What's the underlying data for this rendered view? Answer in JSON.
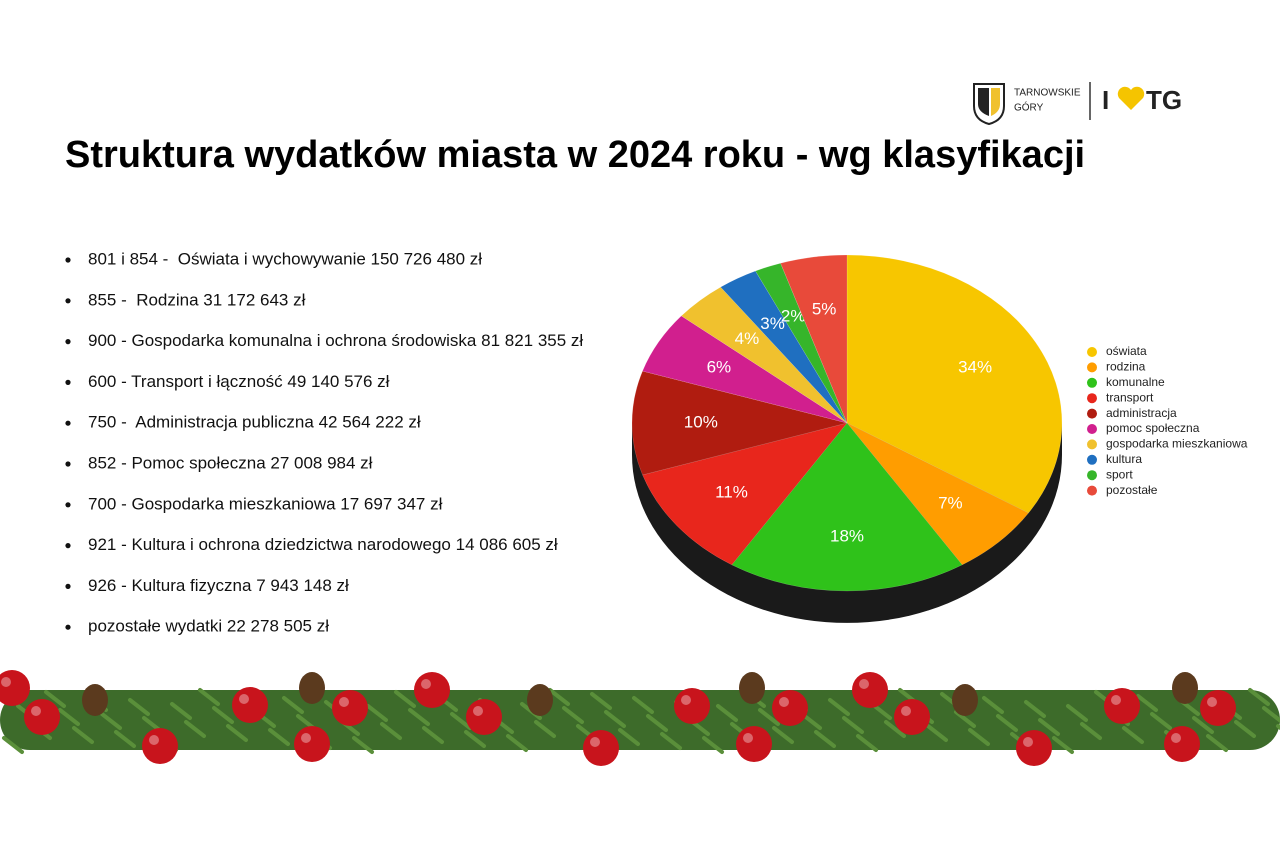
{
  "logo": {
    "city_line1": "TARNOWSKIE",
    "city_line2": "GÓRY",
    "brand_left": "I",
    "brand_right": "TG"
  },
  "title": "Struktura wydatków miasta w 2024 roku - wg klasyfikacji",
  "items": [
    "801 i 854 -  Oświata i wychowywanie 150 726 480 zł",
    "855 -  Rodzina 31 172 643 zł",
    "900 - Gospodarka komunalna i ochrona środowiska 81 821 355 zł",
    "600 - Transport i łączność 49 140 576 zł",
    "750 -  Administracja publiczna 42 564 222 zł",
    "852 - Pomoc społeczna 27 008 984 zł",
    "700 - Gospodarka mieszkaniowa 17 697 347 zł",
    "921 - Kultura i ochrona dziedzictwa narodowego 14 086 605 zł",
    "926 - Kultura fizyczna 7 943 148 zł",
    "pozostałe wydatki 22 278 505 zł"
  ],
  "chart_data": {
    "type": "pie",
    "categories": [
      "oświata",
      "rodzina",
      "komunalne",
      "transport",
      "administracja",
      "pomoc społeczna",
      "gospodarka mieszkaniowa",
      "kultura",
      "sport",
      "pozostałe"
    ],
    "values": [
      34,
      7,
      18,
      11,
      10,
      6,
      4,
      3,
      2,
      5
    ],
    "value_labels": [
      "34%",
      "7%",
      "18%",
      "11%",
      "10%",
      "6%",
      "4%",
      "3%",
      "2%",
      "5%"
    ],
    "colors": [
      "#f7c600",
      "#ff9d00",
      "#2fc21a",
      "#e8261c",
      "#b01c10",
      "#d11f8e",
      "#f0c12e",
      "#1f6fc0",
      "#36b52a",
      "#e84a3a"
    ],
    "legend": "right"
  }
}
